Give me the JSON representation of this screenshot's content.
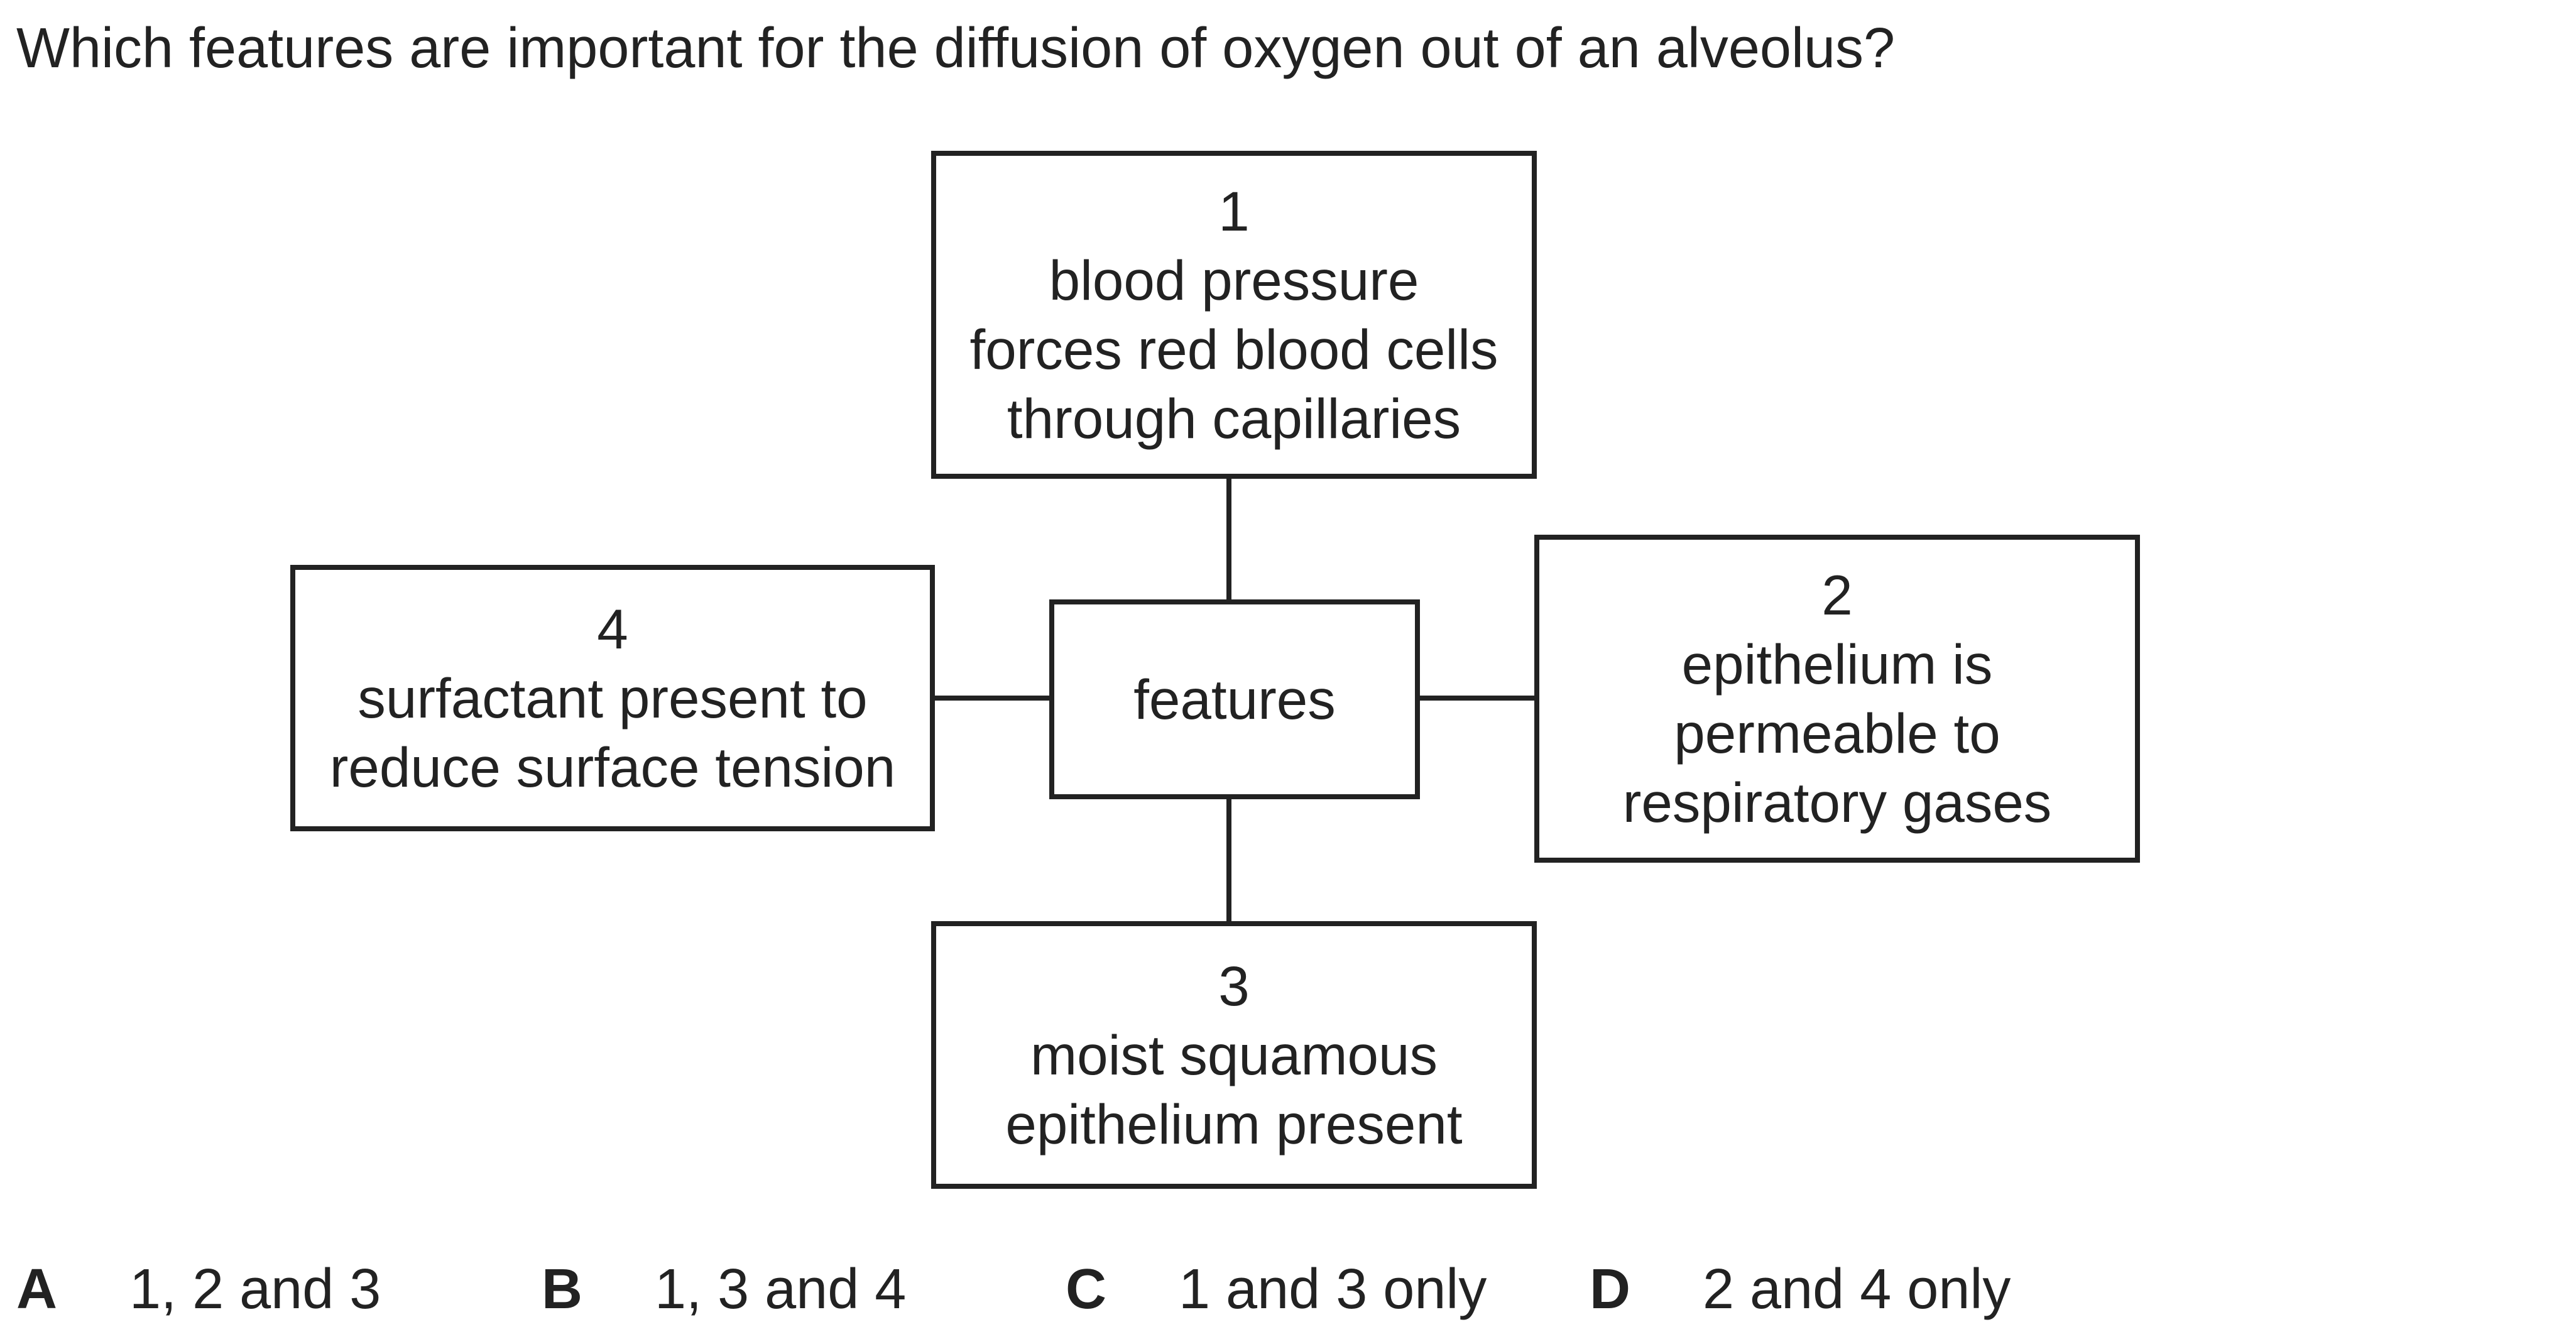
{
  "question": "Which features are important for the diffusion of oxygen out of an alveolus?",
  "diagram": {
    "center": {
      "label": "features"
    },
    "boxes": [
      {
        "number": "1",
        "lines": [
          "blood pressure",
          "forces red blood cells",
          "through capillaries"
        ]
      },
      {
        "number": "2",
        "lines": [
          "epithelium is",
          "permeable to",
          "respiratory gases"
        ]
      },
      {
        "number": "3",
        "lines": [
          "moist squamous",
          "epithelium present"
        ]
      },
      {
        "number": "4",
        "lines": [
          "surfactant present to",
          "reduce surface tension"
        ]
      }
    ]
  },
  "options": [
    {
      "letter": "A",
      "text": "1, 2 and 3"
    },
    {
      "letter": "B",
      "text": "1, 3 and 4"
    },
    {
      "letter": "C",
      "text": "1 and 3 only"
    },
    {
      "letter": "D",
      "text": "2 and 4 only"
    }
  ]
}
